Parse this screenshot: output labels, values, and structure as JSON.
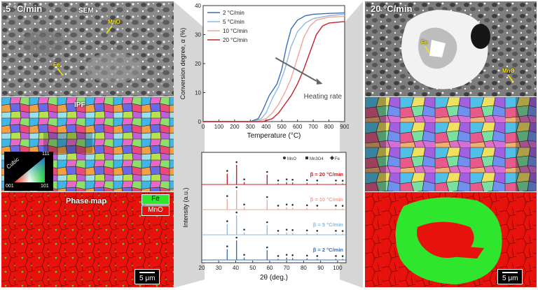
{
  "left": {
    "rate_label": "5 °C/min",
    "sem_label": "SEM",
    "callout_mno": "MnO",
    "callout_fe": "Fe",
    "ipf_label": "IPF",
    "cubic_label": "Cubic",
    "ipf_corner_001": "001",
    "ipf_corner_101": "101",
    "ipf_corner_111": "111",
    "phase_map_label": "Phase map",
    "legend_fe": "Fe",
    "legend_mno": "MnO",
    "scale": "5 μm"
  },
  "right": {
    "rate_label": "20 °C/min",
    "callout_fe": "Fe",
    "callout_mno": "MnO",
    "scale": "5 μm"
  },
  "colors": {
    "fe_phase": "#2ee62e",
    "mno_phase": "#e8120c",
    "series_2": "#3a6fb5",
    "series_5": "#8fb9dd",
    "series_10": "#f0a49a",
    "series_20": "#c8202a"
  },
  "chart_data": [
    {
      "type": "line",
      "xlabel": "Temperature (°C)",
      "ylabel": "Conversion degree, α (%)",
      "xlim": [
        0,
        900
      ],
      "ylim": [
        0,
        40
      ],
      "xticks": [
        0,
        100,
        200,
        300,
        400,
        500,
        600,
        700,
        800,
        900
      ],
      "yticks": [
        0,
        10,
        20,
        30,
        40
      ],
      "annotation": "Heating rate",
      "legend_position": "top-left",
      "series": [
        {
          "name": "2 °C/min",
          "color": "#3a6fb5",
          "x": [
            0,
            300,
            350,
            380,
            420,
            470,
            500,
            530,
            560,
            600,
            650,
            700,
            800,
            900
          ],
          "y": [
            0,
            0,
            1,
            4,
            9,
            13,
            18,
            26,
            32,
            35,
            36.5,
            37,
            37.3,
            37.5
          ]
        },
        {
          "name": "5 °C/min",
          "color": "#8fb9dd",
          "x": [
            0,
            320,
            370,
            400,
            440,
            480,
            520,
            560,
            600,
            650,
            700,
            800,
            900
          ],
          "y": [
            0,
            0,
            1,
            3,
            8,
            12,
            18,
            26,
            31,
            34,
            35.5,
            36.5,
            37
          ]
        },
        {
          "name": "10 °C/min",
          "color": "#f0a49a",
          "x": [
            0,
            340,
            400,
            440,
            480,
            520,
            560,
            600,
            640,
            680,
            720,
            800,
            900
          ],
          "y": [
            0,
            0,
            1,
            3,
            6,
            10,
            15,
            22,
            29,
            33,
            35,
            36,
            36.3
          ]
        },
        {
          "name": "20 °C/min",
          "color": "#c8202a",
          "x": [
            0,
            380,
            440,
            480,
            520,
            560,
            600,
            640,
            680,
            720,
            760,
            800,
            900
          ],
          "y": [
            0,
            0,
            1,
            3,
            6,
            9,
            13,
            18,
            24,
            30,
            33,
            34,
            34.5
          ]
        }
      ]
    },
    {
      "type": "line",
      "xlabel": "2θ (deg.)",
      "ylabel": "Intensity (a.u.)",
      "xlim": [
        20,
        105
      ],
      "xticks": [
        20,
        30,
        40,
        50,
        60,
        70,
        80,
        90,
        100
      ],
      "legend": [
        "MnO",
        "Mn3O4",
        "Fe"
      ],
      "legend_position": "top-right",
      "peaks": [
        {
          "x": 35,
          "h": 0.55
        },
        {
          "x": 40.5,
          "h": 1.0
        },
        {
          "x": 45,
          "h": 0.12
        },
        {
          "x": 58.5,
          "h": 0.5
        },
        {
          "x": 65,
          "h": 0.06
        },
        {
          "x": 70,
          "h": 0.12
        },
        {
          "x": 73.5,
          "h": 0.1
        },
        {
          "x": 82,
          "h": 0.08
        },
        {
          "x": 88,
          "h": 0.06
        },
        {
          "x": 99,
          "h": 0.06
        },
        {
          "x": 103,
          "h": 0.05
        }
      ],
      "series": [
        {
          "name": "β = 20 °C/min",
          "color": "#c8202a"
        },
        {
          "name": "β = 10 °C/min",
          "color": "#f0a49a"
        },
        {
          "name": "β = 5 °C/min",
          "color": "#8fb9dd"
        },
        {
          "name": "β = 2 °C/min",
          "color": "#3a6fb5"
        }
      ]
    }
  ]
}
